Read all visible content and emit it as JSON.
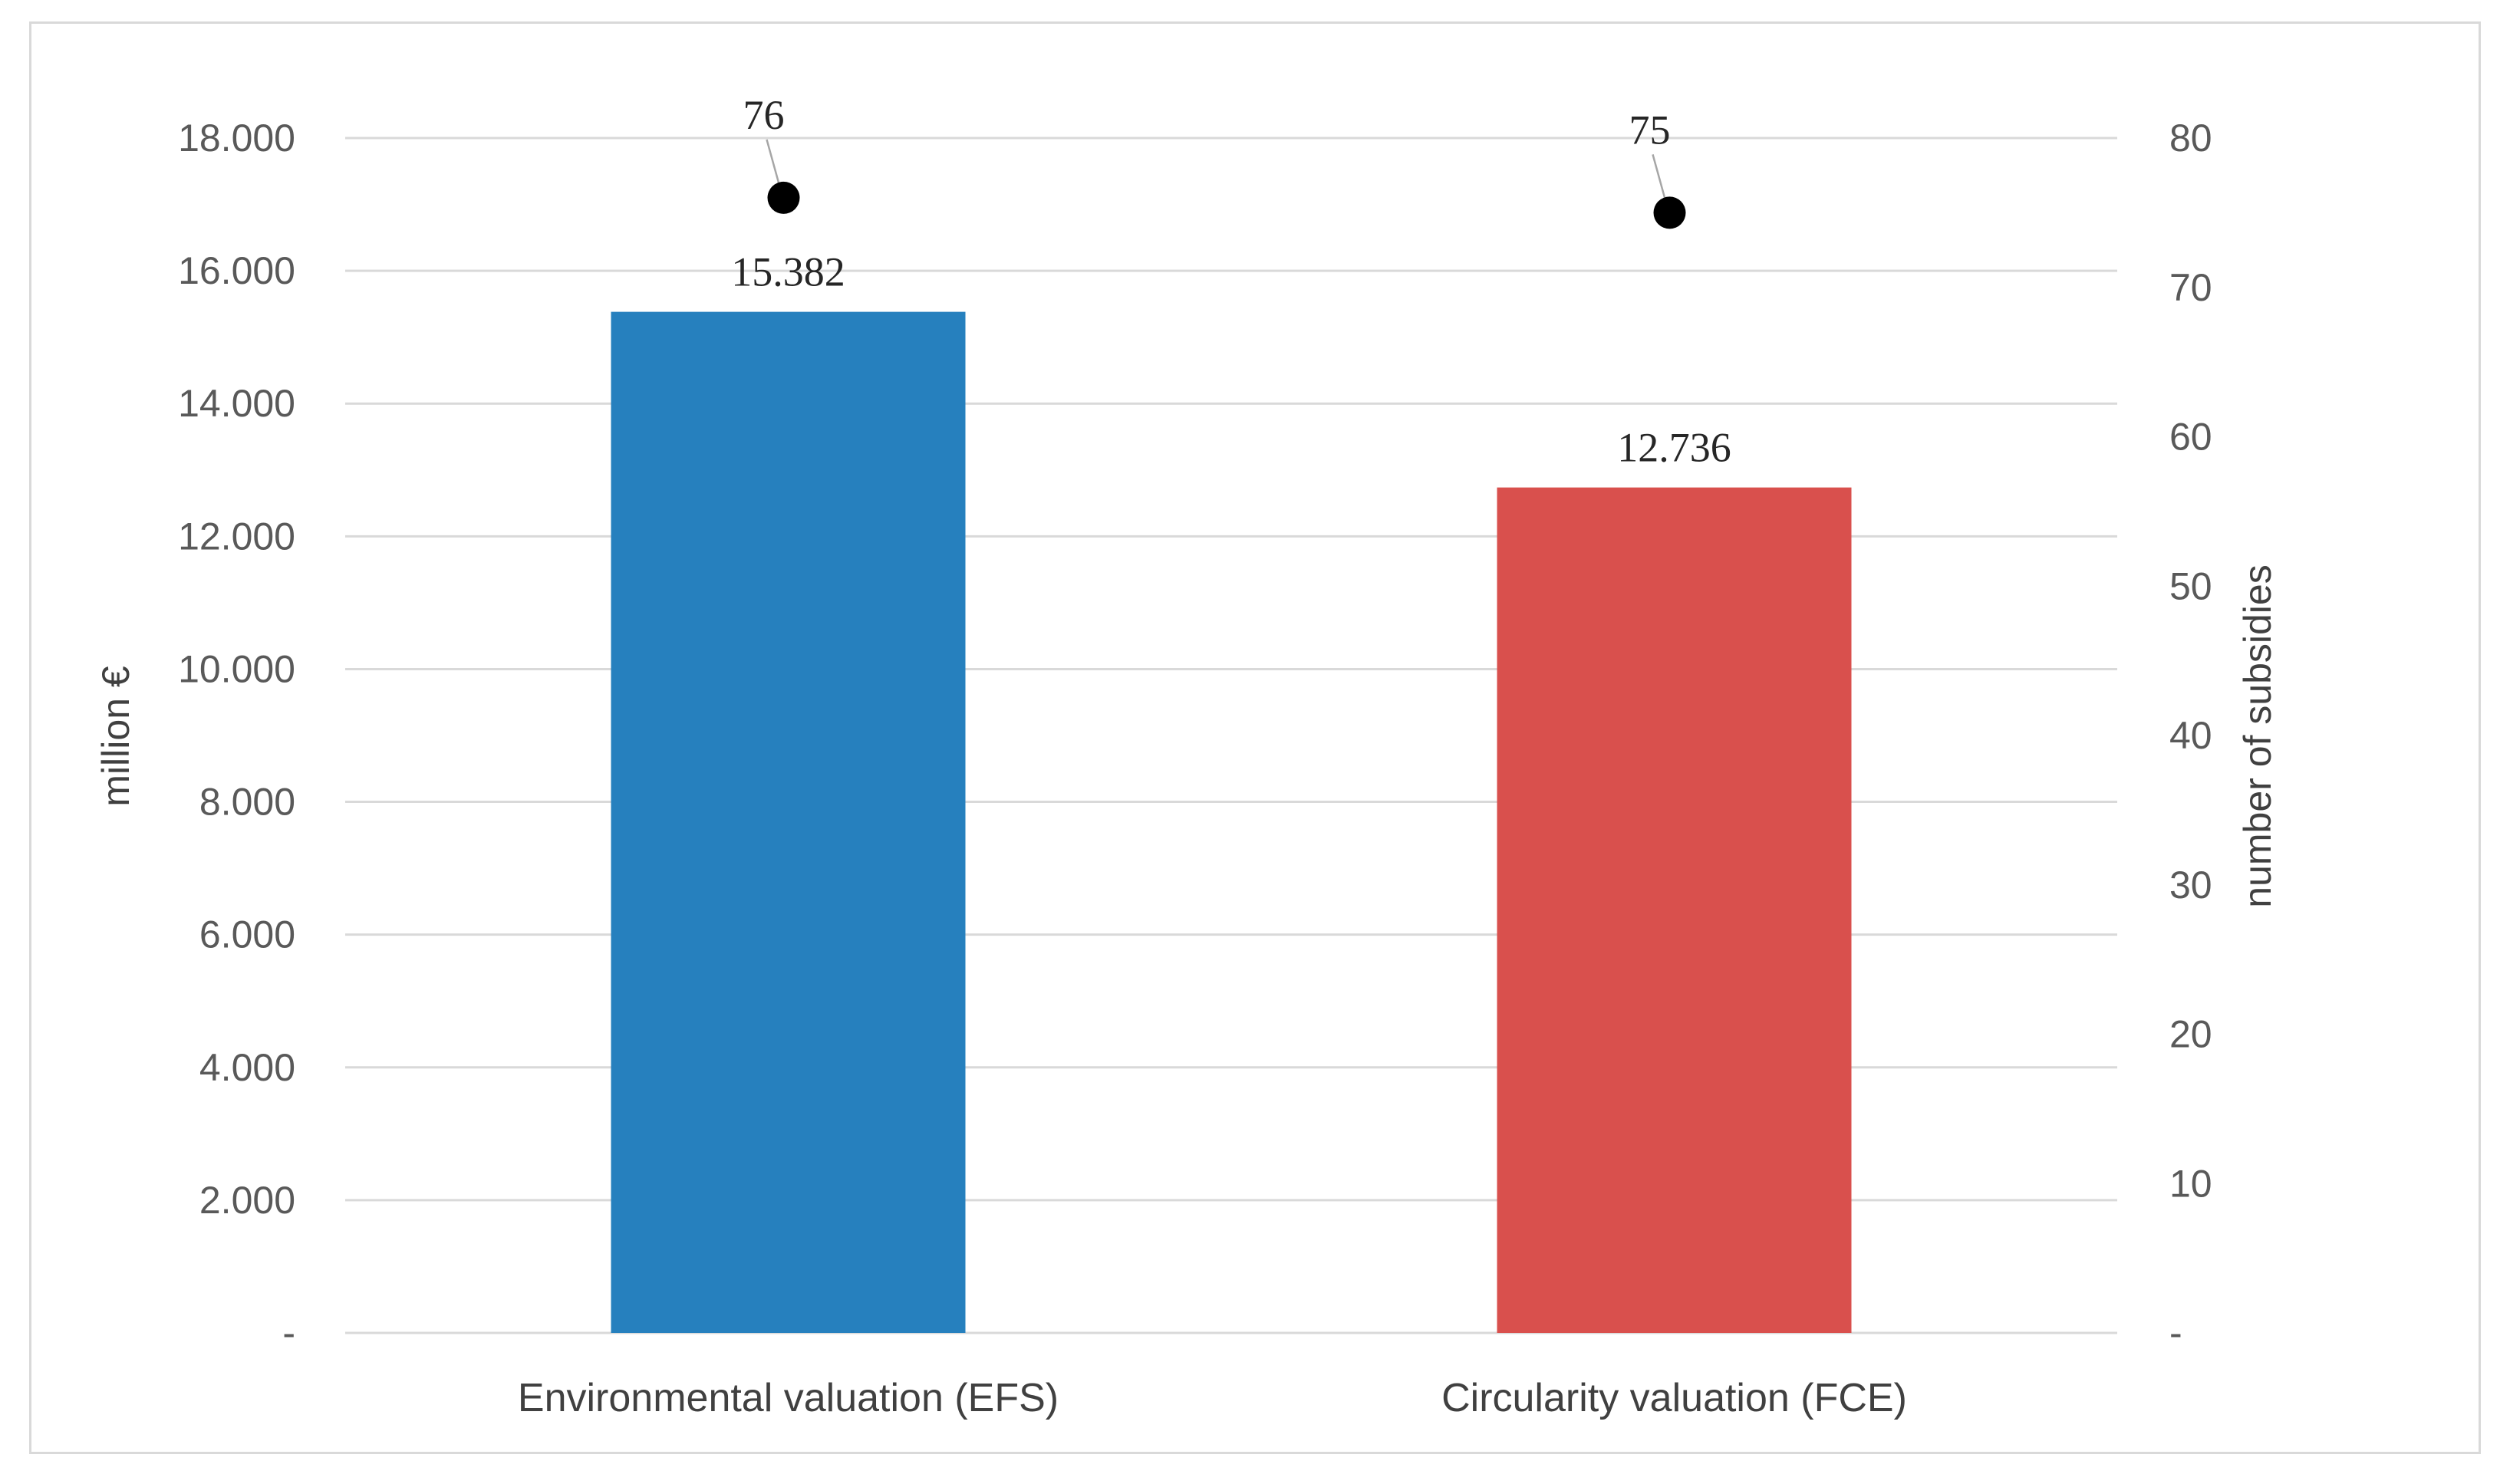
{
  "chart_data": {
    "type": "bar",
    "title": "",
    "categories": [
      "Environmental valuation (EFS)",
      "Circularity valuation (FCE)"
    ],
    "series": [
      {
        "axis": "primary",
        "mark": "bar",
        "values": [
          15382,
          12736
        ],
        "data_labels": [
          "15.382",
          "12.736"
        ],
        "colors": [
          "#2680BE",
          "#D9504D"
        ]
      },
      {
        "axis": "secondary",
        "mark": "point",
        "values": [
          76,
          75
        ],
        "data_labels": [
          "76",
          "75"
        ],
        "color": "#000000"
      }
    ],
    "ylabel": "million €",
    "ylim": [
      0,
      18000
    ],
    "yticks": [
      0,
      2000,
      4000,
      6000,
      8000,
      10000,
      12000,
      14000,
      16000,
      18000
    ],
    "ytick_labels": [
      "-",
      "2.000",
      "4.000",
      "6.000",
      "8.000",
      "10.000",
      "12.000",
      "14.000",
      "16.000",
      "18.000"
    ],
    "y2label": "number of subsidies",
    "y2lim": [
      0,
      80
    ],
    "y2ticks": [
      0,
      10,
      20,
      30,
      40,
      50,
      60,
      70,
      80
    ],
    "y2tick_labels": [
      "-",
      "10",
      "20",
      "30",
      "40",
      "50",
      "60",
      "70",
      "80"
    ],
    "grid": true,
    "legend": "none"
  }
}
